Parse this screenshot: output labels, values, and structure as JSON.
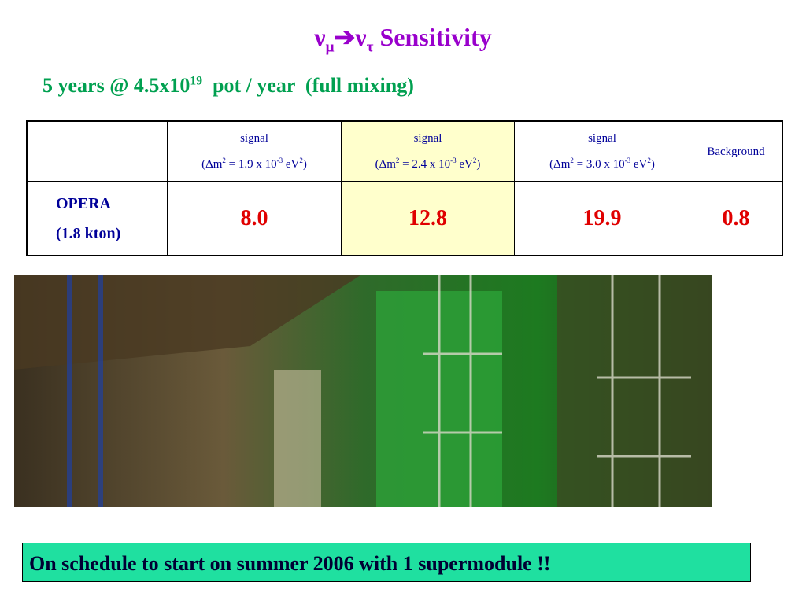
{
  "title": {
    "nu1": "ν",
    "sub1": "μ",
    "arrow": "➔",
    "nu2": "ν",
    "sub2": "τ",
    "text": "Sensitivity"
  },
  "subtitle": {
    "pre": "5 years @ 4.5x10",
    "exp": "19",
    "post": "pot / year  (full mixing)"
  },
  "table": {
    "header": [
      {
        "label": "signal",
        "open": "(Δm",
        "sq": "2",
        "mid": " = 1.9 x 10",
        "exp": "-3",
        "unit": " eV",
        "sq2": "2",
        "close": ")"
      },
      {
        "label": "signal",
        "open": "(Δm",
        "sq": "2",
        "mid": " = 2.4 x 10",
        "exp": "-3",
        "unit": " eV",
        "sq2": "2",
        "close": ")"
      },
      {
        "label": "signal",
        "open": "(Δm",
        "sq": "2",
        "mid": " = 3.0 x 10",
        "exp": "-3",
        "unit": " eV",
        "sq2": "2",
        "close": ")"
      },
      {
        "label": "Background"
      }
    ],
    "row": {
      "name": "OPERA",
      "detail": "(1.8 kton)",
      "cells": [
        "8.0",
        "12.8",
        "19.9",
        "0.8"
      ]
    }
  },
  "footer": "On schedule to start on summer 2006 with 1 supermodule !!"
}
